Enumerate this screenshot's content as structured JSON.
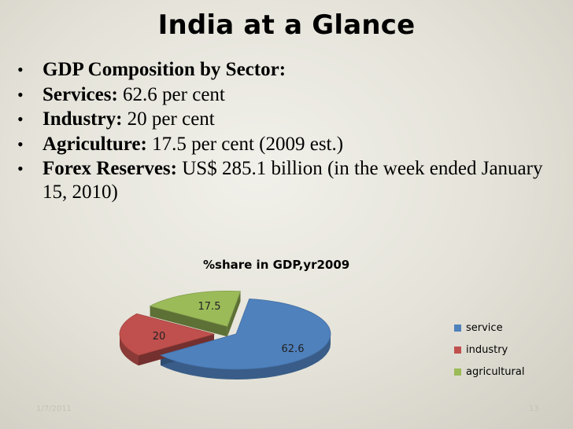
{
  "slide": {
    "title": "India at a Glance",
    "bullets": [
      {
        "bold": "GDP Composition by Sector:",
        "text": ""
      },
      {
        "bold": "Services:",
        "text": " 62.6 per cent"
      },
      {
        "bold": "Industry:",
        "text": " 20 per cent"
      },
      {
        "bold": "Agriculture:",
        "text": " 17.5 per cent (2009 est.)"
      },
      {
        "bold": "Forex Reserves:",
        "text": " US$ 285.1 billion (in the week ended January 15, 2010)"
      }
    ],
    "footer_date": "1/7/2011",
    "footer_page": "13"
  },
  "chart_data": {
    "type": "pie",
    "title": "%share in GDP,yr2009",
    "categories": [
      "service",
      "industry",
      "agricultural"
    ],
    "values": [
      62.6,
      20,
      17.5
    ],
    "data_labels": [
      "62.6",
      "20",
      "17.5"
    ],
    "colors": [
      "#4f81bd",
      "#c0504d",
      "#9bbb59"
    ],
    "legend_position": "right",
    "exploded": true,
    "style": "3d"
  }
}
